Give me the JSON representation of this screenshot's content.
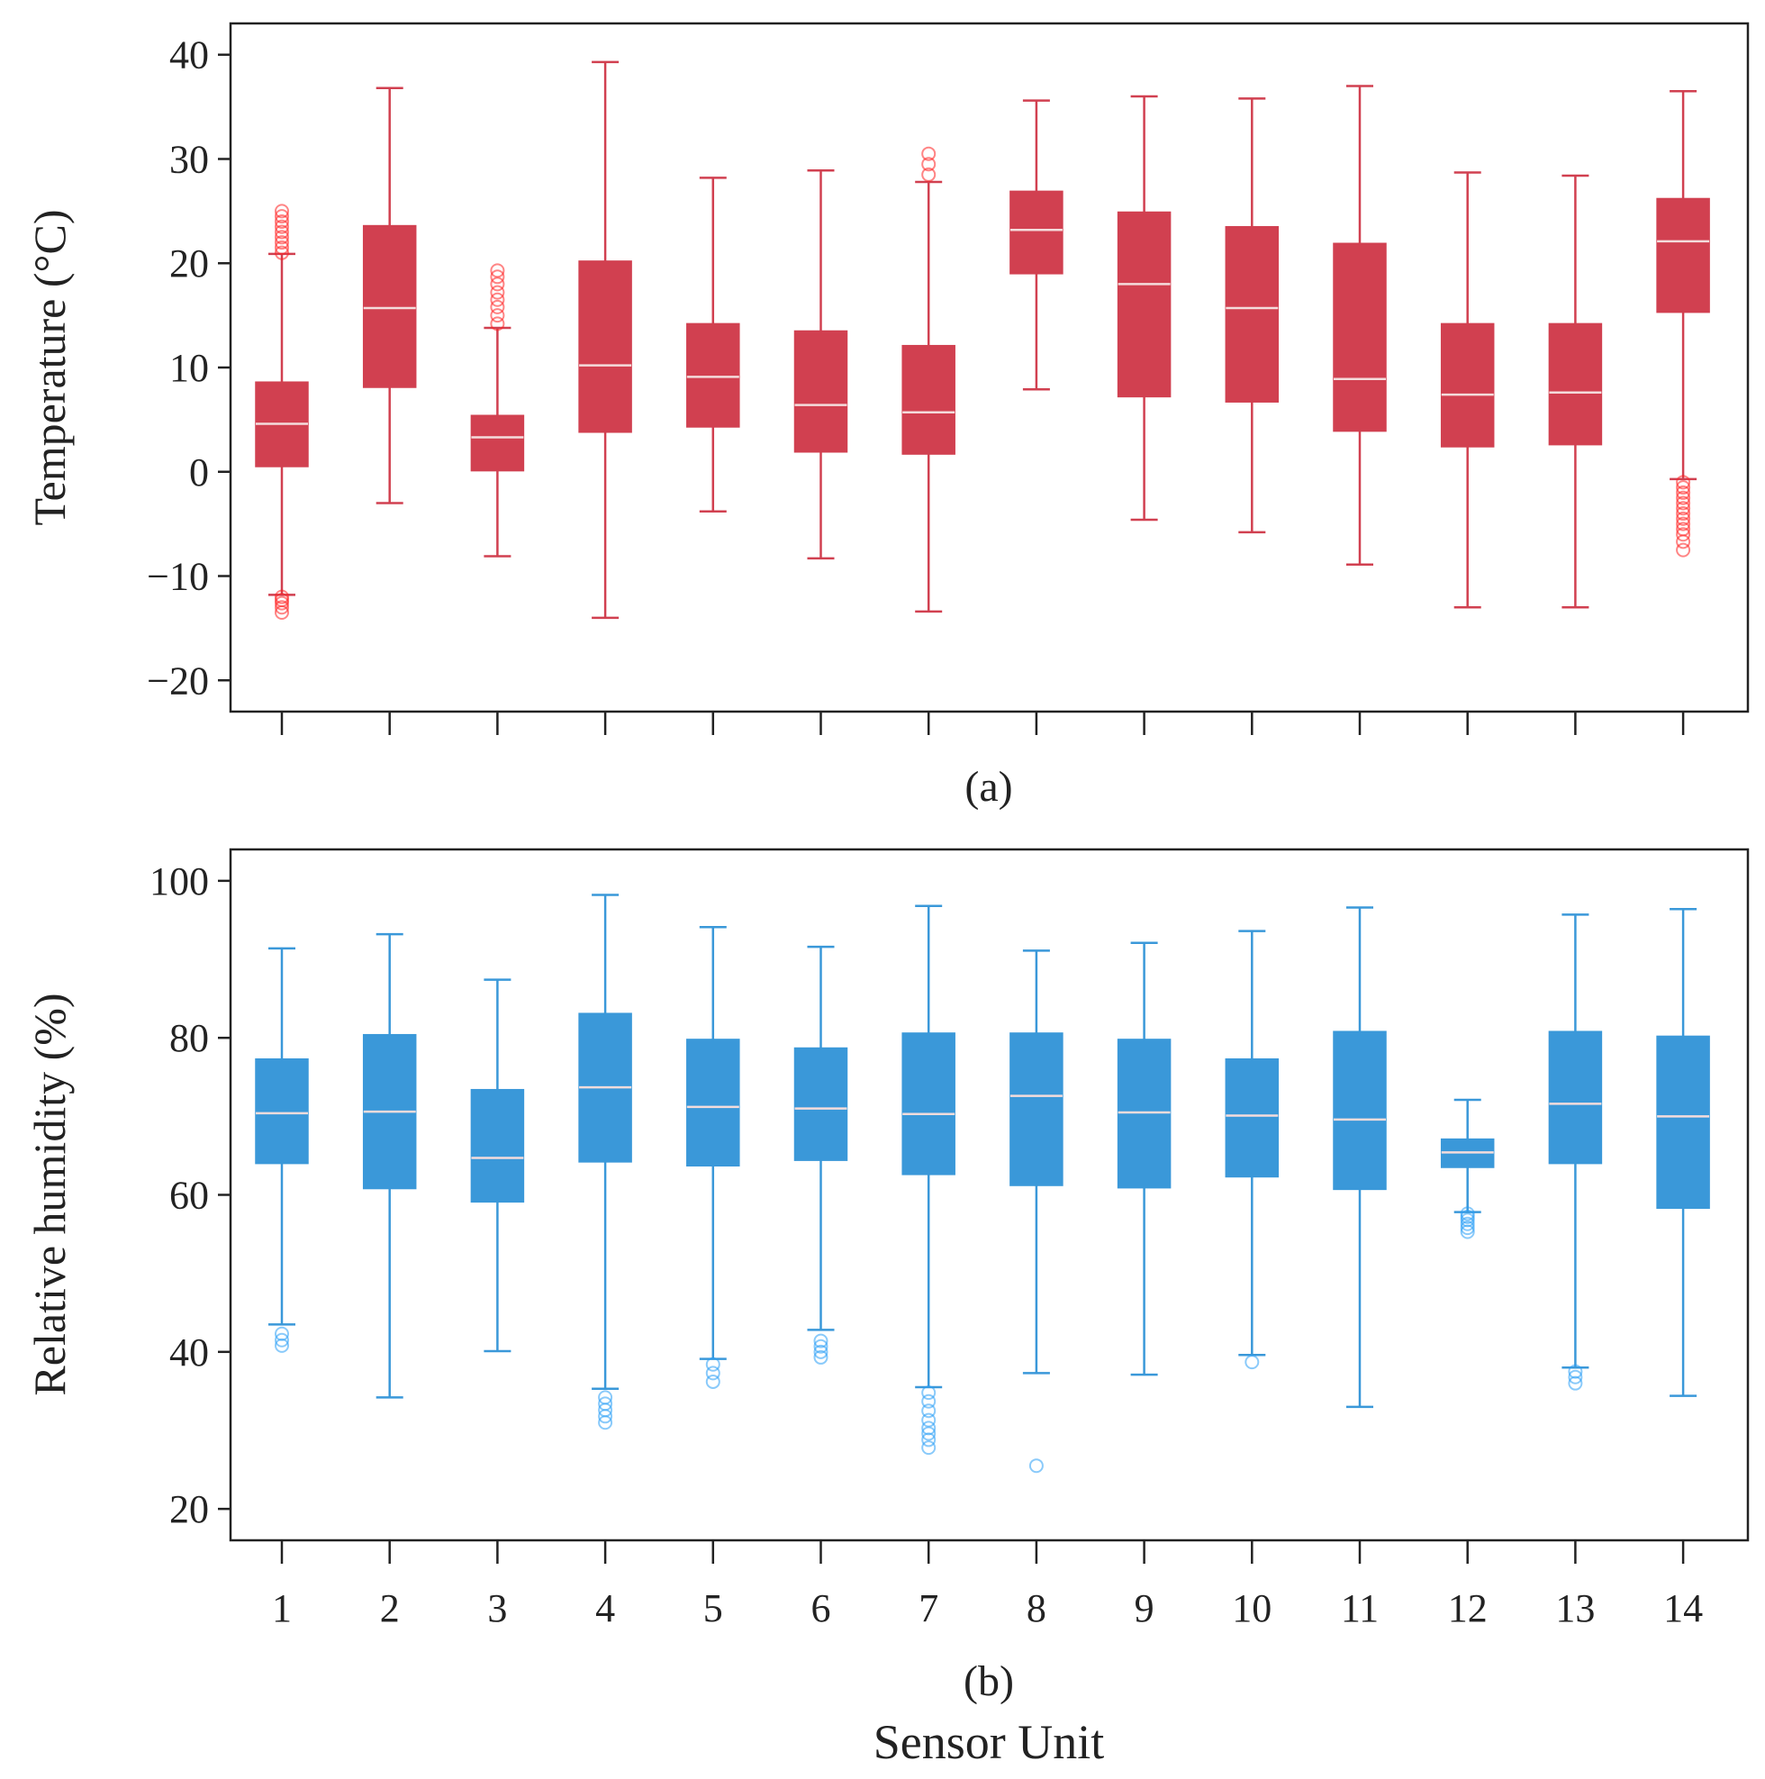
{
  "chart_data": [
    {
      "type": "box",
      "panel_label": "(a)",
      "ylabel": "Temperature (°C)",
      "ylim": [
        -23,
        43
      ],
      "yticks": [
        -20,
        -10,
        0,
        10,
        20,
        30,
        40
      ],
      "categories": [
        "1",
        "2",
        "3",
        "4",
        "5",
        "6",
        "7",
        "8",
        "9",
        "10",
        "11",
        "12",
        "13",
        "14"
      ],
      "box_color": "#d14050",
      "outlier_color": "#ff2020",
      "boxes": [
        {
          "whisker_low": -11.8,
          "q1": 0.5,
          "median": 4.6,
          "q3": 8.6,
          "whisker_high": 20.9,
          "outliers": [
            -12,
            -12.3,
            -12.6,
            -13,
            -13.5,
            21,
            21.5,
            22,
            22.5,
            23,
            23.5,
            24,
            24.5,
            25
          ]
        },
        {
          "whisker_low": -3.0,
          "q1": 8.1,
          "median": 15.7,
          "q3": 23.6,
          "whisker_high": 36.8,
          "outliers": []
        },
        {
          "whisker_low": -8.1,
          "q1": 0.1,
          "median": 3.3,
          "q3": 5.4,
          "whisker_high": 13.8,
          "outliers": [
            14.2,
            15,
            15.8,
            16.5,
            17.2,
            18,
            18.7,
            19.3
          ]
        },
        {
          "whisker_low": -14.0,
          "q1": 3.8,
          "median": 10.2,
          "q3": 20.2,
          "whisker_high": 39.3,
          "outliers": []
        },
        {
          "whisker_low": -3.8,
          "q1": 4.3,
          "median": 9.1,
          "q3": 14.2,
          "whisker_high": 28.2,
          "outliers": []
        },
        {
          "whisker_low": -8.3,
          "q1": 1.9,
          "median": 6.4,
          "q3": 13.5,
          "whisker_high": 28.9,
          "outliers": []
        },
        {
          "whisker_low": -13.4,
          "q1": 1.7,
          "median": 5.7,
          "q3": 12.1,
          "whisker_high": 27.8,
          "outliers": [
            28.5,
            29.5,
            30.5
          ]
        },
        {
          "whisker_low": 7.9,
          "q1": 19.0,
          "median": 23.2,
          "q3": 26.9,
          "whisker_high": 35.6,
          "outliers": []
        },
        {
          "whisker_low": -4.6,
          "q1": 7.2,
          "median": 18.0,
          "q3": 24.9,
          "whisker_high": 36.0,
          "outliers": []
        },
        {
          "whisker_low": -5.8,
          "q1": 6.7,
          "median": 15.7,
          "q3": 23.5,
          "whisker_high": 35.8,
          "outliers": []
        },
        {
          "whisker_low": -8.9,
          "q1": 3.9,
          "median": 8.9,
          "q3": 21.9,
          "whisker_high": 37.0,
          "outliers": []
        },
        {
          "whisker_low": -13.0,
          "q1": 2.4,
          "median": 7.4,
          "q3": 14.2,
          "whisker_high": 28.7,
          "outliers": []
        },
        {
          "whisker_low": -13.0,
          "q1": 2.6,
          "median": 7.6,
          "q3": 14.2,
          "whisker_high": 28.4,
          "outliers": []
        },
        {
          "whisker_low": -0.7,
          "q1": 15.3,
          "median": 22.1,
          "q3": 26.2,
          "whisker_high": 36.5,
          "outliers": [
            -1,
            -1.5,
            -2,
            -2.5,
            -3,
            -3.5,
            -4,
            -4.5,
            -5,
            -5.5,
            -6,
            -6.7,
            -7.5
          ]
        }
      ]
    },
    {
      "type": "box",
      "panel_label": "(b)",
      "ylabel": "Relative humidity (%)",
      "xlabel": "Sensor Unit",
      "ylim": [
        16,
        104
      ],
      "yticks": [
        20,
        40,
        60,
        80,
        100
      ],
      "categories": [
        "1",
        "2",
        "3",
        "4",
        "5",
        "6",
        "7",
        "8",
        "9",
        "10",
        "11",
        "12",
        "13",
        "14"
      ],
      "box_color": "#3a98d9",
      "outlier_color": "#2a9ff5",
      "boxes": [
        {
          "whisker_low": 43.5,
          "q1": 64.0,
          "median": 70.4,
          "q3": 77.3,
          "whisker_high": 91.4,
          "outliers": [
            40.8,
            41.5,
            42.3
          ]
        },
        {
          "whisker_low": 34.2,
          "q1": 60.8,
          "median": 70.6,
          "q3": 80.4,
          "whisker_high": 93.2,
          "outliers": []
        },
        {
          "whisker_low": 40.1,
          "q1": 59.1,
          "median": 64.7,
          "q3": 73.4,
          "whisker_high": 87.4,
          "outliers": []
        },
        {
          "whisker_low": 35.3,
          "q1": 64.2,
          "median": 73.7,
          "q3": 83.1,
          "whisker_high": 98.2,
          "outliers": [
            31,
            31.8,
            32.6,
            33.4,
            34.2
          ]
        },
        {
          "whisker_low": 39.1,
          "q1": 63.7,
          "median": 71.2,
          "q3": 79.8,
          "whisker_high": 94.1,
          "outliers": [
            36.2,
            37.3,
            38.4
          ]
        },
        {
          "whisker_low": 42.8,
          "q1": 64.4,
          "median": 71.0,
          "q3": 78.7,
          "whisker_high": 91.6,
          "outliers": [
            39.3,
            40,
            40.7,
            41.4
          ]
        },
        {
          "whisker_low": 35.5,
          "q1": 62.6,
          "median": 70.3,
          "q3": 80.6,
          "whisker_high": 96.8,
          "outliers": [
            27.8,
            28.8,
            29.6,
            30.3,
            31.3,
            32.5,
            33.7,
            34.8
          ]
        },
        {
          "whisker_low": 37.3,
          "q1": 61.2,
          "median": 72.6,
          "q3": 80.6,
          "whisker_high": 91.1,
          "outliers": [
            25.5
          ]
        },
        {
          "whisker_low": 37.1,
          "q1": 60.9,
          "median": 70.5,
          "q3": 79.8,
          "whisker_high": 92.1,
          "outliers": []
        },
        {
          "whisker_low": 39.6,
          "q1": 62.3,
          "median": 70.1,
          "q3": 77.3,
          "whisker_high": 93.6,
          "outliers": [
            38.7
          ]
        },
        {
          "whisker_low": 33.0,
          "q1": 60.7,
          "median": 69.6,
          "q3": 80.8,
          "whisker_high": 96.6,
          "outliers": []
        },
        {
          "whisker_low": 57.8,
          "q1": 63.5,
          "median": 65.4,
          "q3": 67.1,
          "whisker_high": 72.1,
          "outliers": [
            55.3,
            55.8,
            56.3,
            56.8,
            57.2,
            57.6
          ]
        },
        {
          "whisker_low": 38.0,
          "q1": 64.0,
          "median": 71.6,
          "q3": 80.8,
          "whisker_high": 95.7,
          "outliers": [
            36,
            36.8,
            37.5
          ]
        },
        {
          "whisker_low": 34.4,
          "q1": 58.3,
          "median": 70.0,
          "q3": 80.2,
          "whisker_high": 96.4,
          "outliers": []
        }
      ]
    }
  ]
}
